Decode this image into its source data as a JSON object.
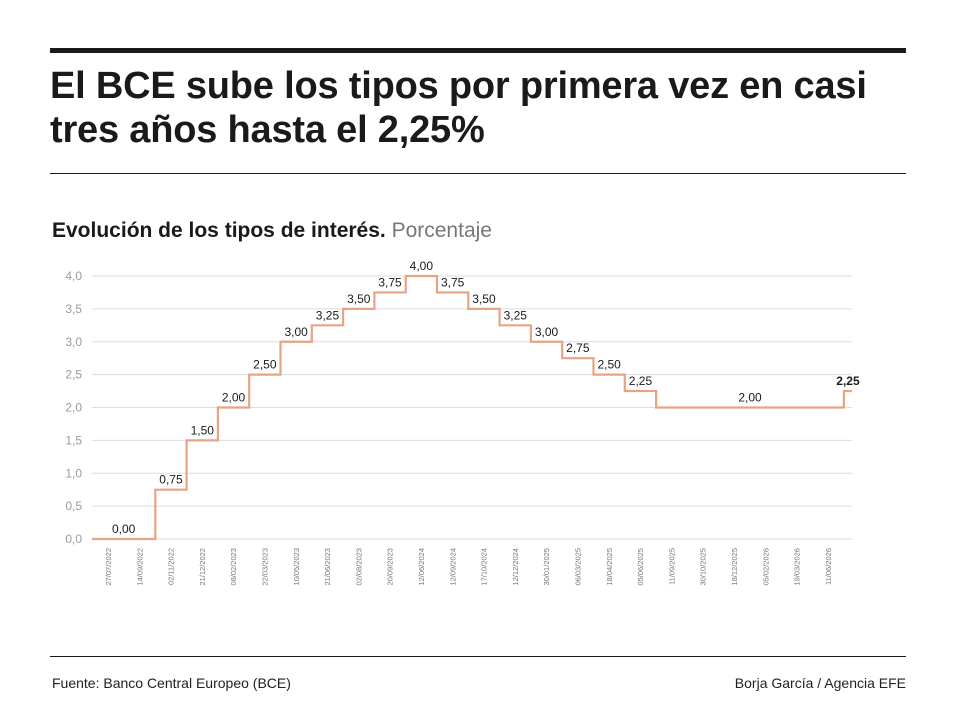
{
  "headline": "El BCE sube los tipos por primera vez en casi tres años hasta el 2,25%",
  "chart_data": {
    "type": "line",
    "step": true,
    "title": "Evolución de los tipos de interés.",
    "subtitle": "Porcentaje",
    "xlabel": "",
    "ylabel": "",
    "ylim": [
      0,
      4
    ],
    "yticks": [
      "0,0",
      "0,5",
      "1,0",
      "1,5",
      "2,0",
      "2,5",
      "3,0",
      "3,5",
      "4,0"
    ],
    "grid": true,
    "line_color": "#e8a384",
    "x": [
      "27/07/2022",
      "14/09/2022",
      "02/11/2022",
      "21/12/2022",
      "08/02/2023",
      "22/03/2023",
      "10/05/2023",
      "21/06/2023",
      "02/08/2023",
      "20/09/2023",
      "12/06/2024",
      "12/09/2024",
      "17/10/2024",
      "12/12/2024",
      "30/01/2025",
      "06/03/2025",
      "18/04/2025",
      "05/06/2025",
      "11/09/2025",
      "30/10/2025",
      "18/12/2025",
      "05/02/2026",
      "19/03/2026",
      "11/06/2026"
    ],
    "series": [
      {
        "values": [
          0,
          0.75,
          1.5,
          2.0,
          2.5,
          3.0,
          3.25,
          3.5,
          3.75,
          4.0,
          3.75,
          3.5,
          3.25,
          3.0,
          2.75,
          2.5,
          2.25,
          2.0,
          2.0,
          2.0,
          2.0,
          2.0,
          2.0,
          2.25
        ]
      }
    ],
    "data_labels": [
      {
        "i": 0,
        "text": "0,00"
      },
      {
        "i": 1,
        "text": "0,75"
      },
      {
        "i": 2,
        "text": "1,50"
      },
      {
        "i": 3,
        "text": "2,00"
      },
      {
        "i": 4,
        "text": "2,50"
      },
      {
        "i": 5,
        "text": "3,00"
      },
      {
        "i": 6,
        "text": "3,25"
      },
      {
        "i": 7,
        "text": "3,50"
      },
      {
        "i": 8,
        "text": "3,75"
      },
      {
        "i": 9,
        "text": "4,00"
      },
      {
        "i": 10,
        "text": "3,75"
      },
      {
        "i": 11,
        "text": "3,50"
      },
      {
        "i": 12,
        "text": "3,25"
      },
      {
        "i": 13,
        "text": "3,00"
      },
      {
        "i": 14,
        "text": "2,75"
      },
      {
        "i": 15,
        "text": "2,50"
      },
      {
        "i": 16,
        "text": "2,25"
      },
      {
        "i": 17,
        "text": "2,00",
        "span_to": 22
      },
      {
        "i": 23,
        "text": "2,25",
        "bold": true
      }
    ]
  },
  "footer": {
    "source": "Fuente: Banco Central Europeo (BCE)",
    "credit": "Borja García / Agencia EFE"
  }
}
